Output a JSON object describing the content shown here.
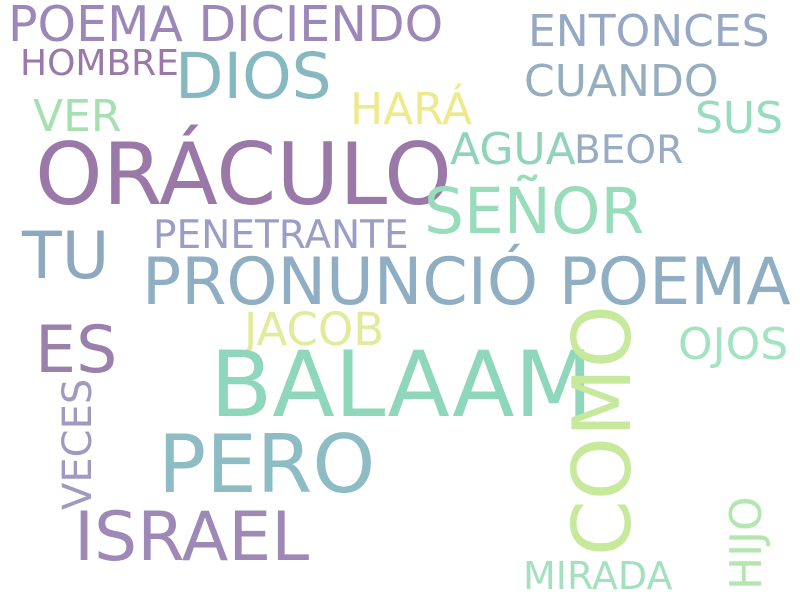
{
  "words": {
    "poema_diciendo": {
      "text": "POEMA DICIENDO",
      "color": "#9b88b8"
    },
    "entonces": {
      "text": "ENTONCES",
      "color": "#97a8c4"
    },
    "hombre": {
      "text": "HOMBRE",
      "color": "#9a78a8"
    },
    "dios": {
      "text": "DIOS",
      "color": "#86b8c2"
    },
    "cuando": {
      "text": "CUANDO",
      "color": "#94aec0"
    },
    "hara": {
      "text": "HARÁ",
      "color": "#eeea8c"
    },
    "ver": {
      "text": "VER",
      "color": "#a6e0b0"
    },
    "sus": {
      "text": "SUS",
      "color": "#98dcbf"
    },
    "oraculo": {
      "text": "ORÁCULO",
      "color": "#9a78a8"
    },
    "agua": {
      "text": "AGUA",
      "color": "#8fd3b9"
    },
    "beor": {
      "text": "BEOR",
      "color": "#98acc4"
    },
    "senor": {
      "text": "SEÑOR",
      "color": "#98dcbc"
    },
    "tu": {
      "text": "TU",
      "color": "#8ea8c0"
    },
    "penetrante": {
      "text": "PENETRANTE",
      "color": "#9b9ec4"
    },
    "pronuncio_poema": {
      "text": "PRONUNCIÓ POEMA",
      "color": "#8faec4"
    },
    "es": {
      "text": "ES",
      "color": "#9b80ac"
    },
    "jacob": {
      "text": "JACOB",
      "color": "#e2eb9b"
    },
    "ojos": {
      "text": "OJOS",
      "color": "#a2e3c2"
    },
    "balaam": {
      "text": "BALAAM",
      "color": "#8ed6bc"
    },
    "como": {
      "text": "COMO",
      "color": "#c6e99b"
    },
    "veces": {
      "text": "VECES",
      "color": "#a299c2"
    },
    "pero": {
      "text": "PERO",
      "color": "#8ebcc4"
    },
    "israel": {
      "text": "ISRAEL",
      "color": "#9d88b6"
    },
    "hijo": {
      "text": "HIJO",
      "color": "#b4e6b0"
    },
    "mirada": {
      "text": "MIRADA",
      "color": "#a6dfc0"
    }
  }
}
